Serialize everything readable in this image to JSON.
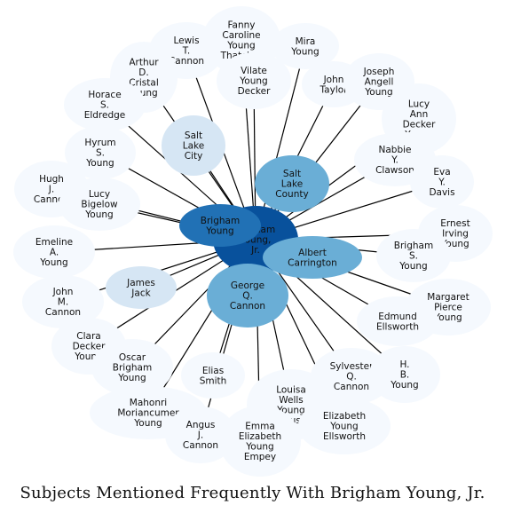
{
  "title": "Subjects Mentioned Frequently With Brigham Young, Jr.",
  "colors": {
    "peripheral": "#f5f9fe",
    "light": "#d6e6f4",
    "medium": "#6aaed6",
    "strong": "#2171b5",
    "center": "#08519c",
    "edge": "#000000"
  },
  "center": {
    "lines": [
      "Brigham",
      "Young,",
      "Jr."
    ],
    "shade": "center"
  },
  "nodes": [
    {
      "id": "lewis",
      "lines": [
        "Lewis",
        "T.",
        "Cannon"
      ],
      "shade": "peripheral"
    },
    {
      "id": "fanny",
      "lines": [
        "Fanny",
        "Caroline",
        "Young",
        "Thatcher"
      ],
      "shade": "peripheral"
    },
    {
      "id": "mira",
      "lines": [
        "Mira",
        "Young"
      ],
      "shade": "peripheral"
    },
    {
      "id": "arthur",
      "lines": [
        "Arthur",
        "D.",
        "Cristal",
        "Young"
      ],
      "shade": "peripheral"
    },
    {
      "id": "vilate",
      "lines": [
        "Vilate",
        "Young",
        "Decker"
      ],
      "shade": "peripheral"
    },
    {
      "id": "john-taylor",
      "lines": [
        "John",
        "Taylor"
      ],
      "shade": "peripheral"
    },
    {
      "id": "joseph",
      "lines": [
        "Joseph",
        "Angell",
        "Young"
      ],
      "shade": "peripheral"
    },
    {
      "id": "horace",
      "lines": [
        "Horace",
        "S.",
        "Eldredge"
      ],
      "shade": "peripheral"
    },
    {
      "id": "lucy-decker",
      "lines": [
        "Lucy",
        "Ann",
        "Decker",
        "Young"
      ],
      "shade": "peripheral"
    },
    {
      "id": "slc-city",
      "lines": [
        "Salt",
        "Lake",
        "City"
      ],
      "shade": "light"
    },
    {
      "id": "hyrum",
      "lines": [
        "Hyrum",
        "S.",
        "Young"
      ],
      "shade": "peripheral"
    },
    {
      "id": "nabbie",
      "lines": [
        "Nabbie",
        "Y.",
        "Clawson"
      ],
      "shade": "peripheral"
    },
    {
      "id": "slc-county",
      "lines": [
        "Salt",
        "Lake",
        "County"
      ],
      "shade": "medium"
    },
    {
      "id": "eva",
      "lines": [
        "Eva",
        "Y.",
        "Davis"
      ],
      "shade": "peripheral"
    },
    {
      "id": "hugh",
      "lines": [
        "Hugh",
        "J.",
        "Cannon"
      ],
      "shade": "peripheral"
    },
    {
      "id": "lucy-bigelow",
      "lines": [
        "Lucy",
        "Bigelow",
        "Young"
      ],
      "shade": "peripheral"
    },
    {
      "id": "brigham",
      "lines": [
        "Brigham",
        "Young"
      ],
      "shade": "strong"
    },
    {
      "id": "ernest",
      "lines": [
        "Ernest",
        "Irving",
        "Young"
      ],
      "shade": "peripheral"
    },
    {
      "id": "emeline",
      "lines": [
        "Emeline",
        "A.",
        "Young"
      ],
      "shade": "peripheral"
    },
    {
      "id": "albert",
      "lines": [
        "Albert",
        "Carrington"
      ],
      "shade": "medium"
    },
    {
      "id": "brigham-s",
      "lines": [
        "Brigham",
        "S.",
        "Young"
      ],
      "shade": "peripheral"
    },
    {
      "id": "james-jack",
      "lines": [
        "James",
        "Jack"
      ],
      "shade": "light"
    },
    {
      "id": "george-q",
      "lines": [
        "George",
        "Q.",
        "Cannon"
      ],
      "shade": "medium"
    },
    {
      "id": "john-m",
      "lines": [
        "John",
        "M.",
        "Cannon"
      ],
      "shade": "peripheral"
    },
    {
      "id": "margaret",
      "lines": [
        "Margaret",
        "Pierce",
        "Young"
      ],
      "shade": "peripheral"
    },
    {
      "id": "edmund",
      "lines": [
        "Edmund",
        "Ellsworth"
      ],
      "shade": "peripheral"
    },
    {
      "id": "clara",
      "lines": [
        "Clara",
        "Decker",
        "Young"
      ],
      "shade": "peripheral"
    },
    {
      "id": "oscar",
      "lines": [
        "Oscar",
        "Brigham",
        "Young"
      ],
      "shade": "peripheral"
    },
    {
      "id": "elias",
      "lines": [
        "Elias",
        "Smith"
      ],
      "shade": "peripheral"
    },
    {
      "id": "sylvester",
      "lines": [
        "Sylvester",
        "Q.",
        "Cannon"
      ],
      "shade": "peripheral"
    },
    {
      "id": "h-b",
      "lines": [
        "H.",
        "B.",
        "Young"
      ],
      "shade": "peripheral"
    },
    {
      "id": "louisa",
      "lines": [
        "Louisa",
        "Wells",
        "Young",
        "Ferguson"
      ],
      "shade": "peripheral"
    },
    {
      "id": "mahonri",
      "lines": [
        "Mahonri",
        "Moriancumer",
        "Young"
      ],
      "shade": "peripheral"
    },
    {
      "id": "angus",
      "lines": [
        "Angus",
        "J.",
        "Cannon"
      ],
      "shade": "peripheral"
    },
    {
      "id": "elizabeth-e",
      "lines": [
        "Emma",
        "Elizabeth",
        "Young",
        "Empey"
      ],
      "shade": "peripheral"
    },
    {
      "id": "elizabeth-ells",
      "lines": [
        "Elizabeth",
        "Young",
        "Ellsworth"
      ],
      "shade": "peripheral"
    }
  ]
}
